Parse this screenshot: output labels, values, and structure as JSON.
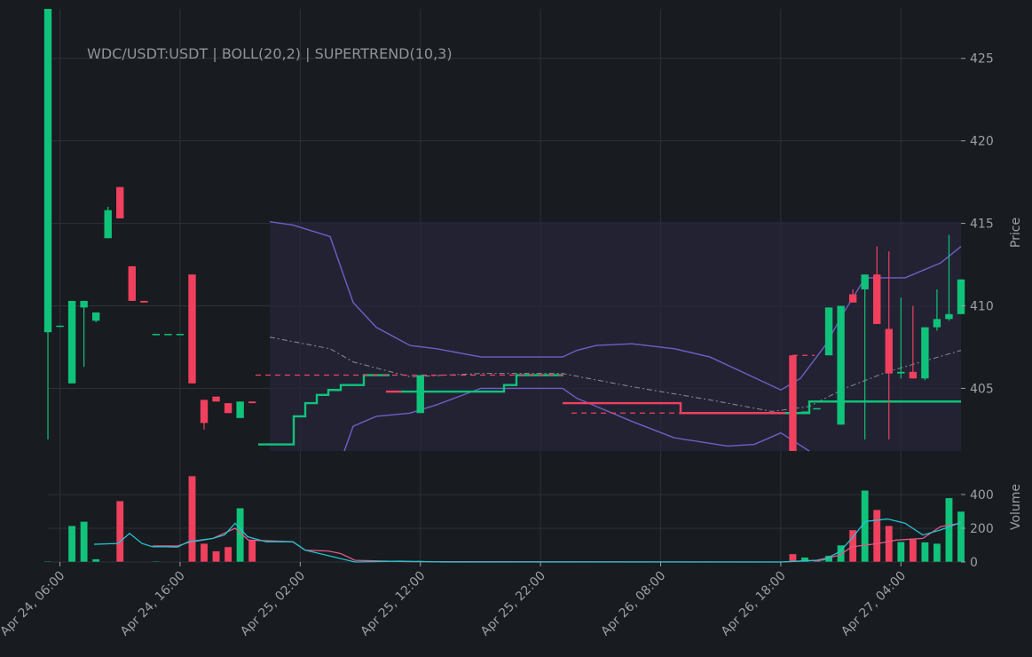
{
  "chart_data": {
    "type": "candlestick",
    "title": "WDC/USDT:USDT | BOLL(20,2) | SUPERTREND(10,3)",
    "price_label": "Price",
    "volume_label": "Volume",
    "price_ylim": [
      401.2,
      428.0
    ],
    "price_ticks": [
      405,
      410,
      415,
      420,
      425
    ],
    "volume_ylim": [
      0,
      500
    ],
    "volume_ticks": [
      0,
      200,
      400
    ],
    "x_start": "2024-04-24T05:00",
    "x_end": "2024-04-27T09:00",
    "x_ticks": [
      {
        "t": "2024-04-24T06:00",
        "label": "Apr 24, 06:00"
      },
      {
        "t": "2024-04-24T16:00",
        "label": "Apr 24, 16:00"
      },
      {
        "t": "2024-04-25T02:00",
        "label": "Apr 25, 02:00"
      },
      {
        "t": "2024-04-25T12:00",
        "label": "Apr 25, 12:00"
      },
      {
        "t": "2024-04-25T22:00",
        "label": "Apr 25, 22:00"
      },
      {
        "t": "2024-04-26T08:00",
        "label": "Apr 26, 08:00"
      },
      {
        "t": "2024-04-26T18:00",
        "label": "Apr 26, 18:00"
      },
      {
        "t": "2024-04-27T04:00",
        "label": "Apr 27, 04:00"
      }
    ],
    "candles": [
      {
        "t": "2024-04-24T05:00",
        "o": 408.4,
        "h": 428.0,
        "l": 401.9,
        "c": 428.0,
        "v": 5
      },
      {
        "t": "2024-04-24T06:00",
        "o": 408.8,
        "h": 408.8,
        "l": 408.8,
        "c": 408.8,
        "v": 0
      },
      {
        "t": "2024-04-24T07:00",
        "o": 405.3,
        "h": 410.3,
        "l": 405.3,
        "c": 410.3,
        "v": 215
      },
      {
        "t": "2024-04-24T08:00",
        "o": 409.9,
        "h": 410.3,
        "l": 406.3,
        "c": 410.3,
        "v": 240
      },
      {
        "t": "2024-04-24T09:00",
        "o": 409.1,
        "h": 409.6,
        "l": 409.0,
        "c": 409.6,
        "v": 18
      },
      {
        "t": "2024-04-24T10:00",
        "o": 414.1,
        "h": 416.0,
        "l": 414.1,
        "c": 415.8,
        "v": 0
      },
      {
        "t": "2024-04-24T11:00",
        "o": 417.2,
        "h": 417.2,
        "l": 415.3,
        "c": 415.3,
        "v": 362
      },
      {
        "t": "2024-04-24T12:00",
        "o": 412.4,
        "h": 412.4,
        "l": 410.3,
        "c": 410.3,
        "v": 0
      },
      {
        "t": "2024-04-24T13:00",
        "o": 410.3,
        "h": 410.3,
        "l": 410.2,
        "c": 410.2,
        "v": 0
      },
      {
        "t": "2024-04-24T14:00",
        "o": 408.3,
        "h": 408.3,
        "l": 408.3,
        "c": 408.3,
        "v": 5
      },
      {
        "t": "2024-04-24T15:00",
        "o": 408.3,
        "h": 408.3,
        "l": 408.3,
        "c": 408.3,
        "v": 0
      },
      {
        "t": "2024-04-24T16:00",
        "o": 408.3,
        "h": 408.3,
        "l": 408.3,
        "c": 408.3,
        "v": 0
      },
      {
        "t": "2024-04-24T17:00",
        "o": 411.9,
        "h": 411.9,
        "l": 405.3,
        "c": 405.3,
        "v": 510
      },
      {
        "t": "2024-04-24T18:00",
        "o": 404.3,
        "h": 404.3,
        "l": 402.5,
        "c": 402.9,
        "v": 110
      },
      {
        "t": "2024-04-24T19:00",
        "o": 404.5,
        "h": 404.5,
        "l": 404.2,
        "c": 404.2,
        "v": 65
      },
      {
        "t": "2024-04-24T20:00",
        "o": 404.1,
        "h": 404.1,
        "l": 403.5,
        "c": 403.5,
        "v": 90
      },
      {
        "t": "2024-04-24T21:00",
        "o": 403.2,
        "h": 404.2,
        "l": 403.2,
        "c": 404.2,
        "v": 320
      },
      {
        "t": "2024-04-24T22:00",
        "o": 404.2,
        "h": 404.2,
        "l": 404.1,
        "c": 404.1,
        "v": 130
      }
    ],
    "volume_extra": [
      {
        "t": "2024-04-25T12:00",
        "v": 8,
        "up": true
      },
      {
        "t": "2024-04-26T19:00",
        "v": 48,
        "up": false
      },
      {
        "t": "2024-04-26T20:00",
        "v": 28,
        "up": true
      },
      {
        "t": "2024-04-26T21:00",
        "v": 12,
        "up": false
      },
      {
        "t": "2024-04-26T22:00",
        "v": 38,
        "up": true
      },
      {
        "t": "2024-04-26T23:00",
        "v": 100,
        "up": true
      },
      {
        "t": "2024-04-27T00:00",
        "v": 190,
        "up": false
      },
      {
        "t": "2024-04-27T01:00",
        "v": 425,
        "up": true
      },
      {
        "t": "2024-04-27T02:00",
        "v": 310,
        "up": false
      },
      {
        "t": "2024-04-27T03:00",
        "v": 215,
        "up": false
      },
      {
        "t": "2024-04-27T04:00",
        "v": 120,
        "up": true
      },
      {
        "t": "2024-04-27T05:00",
        "v": 135,
        "up": false
      },
      {
        "t": "2024-04-27T06:00",
        "v": 118,
        "up": true
      },
      {
        "t": "2024-04-27T07:00",
        "v": 110,
        "up": true
      },
      {
        "t": "2024-04-27T08:00",
        "v": 380,
        "up": true
      },
      {
        "t": "2024-04-27T09:00",
        "v": 300,
        "up": true
      }
    ],
    "candles_late": [
      {
        "t": "2024-04-25T12:00",
        "o": 403.5,
        "h": 405.8,
        "l": 403.5,
        "c": 405.8
      },
      {
        "t": "2024-04-26T19:00",
        "o": 407.0,
        "h": 407.0,
        "l": 401.2,
        "c": 401.2
      },
      {
        "t": "2024-04-26T20:00",
        "o": 403.6,
        "h": 403.6,
        "l": 403.6,
        "c": 403.6
      },
      {
        "t": "2024-04-26T21:00",
        "o": 403.8,
        "h": 403.8,
        "l": 403.8,
        "c": 403.8
      },
      {
        "t": "2024-04-26T22:00",
        "o": 407.0,
        "h": 409.9,
        "l": 407.0,
        "c": 409.9
      },
      {
        "t": "2024-04-26T23:00",
        "o": 402.8,
        "h": 410.0,
        "l": 402.8,
        "c": 410.0
      },
      {
        "t": "2024-04-27T00:00",
        "o": 410.7,
        "h": 411.0,
        "l": 410.2,
        "c": 410.2
      },
      {
        "t": "2024-04-27T01:00",
        "o": 411.0,
        "h": 411.9,
        "l": 401.9,
        "c": 411.9
      },
      {
        "t": "2024-04-27T02:00",
        "o": 411.9,
        "h": 413.6,
        "l": 408.9,
        "c": 408.9
      },
      {
        "t": "2024-04-27T03:00",
        "o": 408.6,
        "h": 413.3,
        "l": 401.9,
        "c": 405.9
      },
      {
        "t": "2024-04-27T04:00",
        "o": 405.9,
        "h": 410.5,
        "l": 405.6,
        "c": 406.0
      },
      {
        "t": "2024-04-27T05:00",
        "o": 406.0,
        "h": 410.0,
        "l": 405.6,
        "c": 405.6
      },
      {
        "t": "2024-04-27T06:00",
        "o": 405.6,
        "h": 408.7,
        "l": 405.5,
        "c": 408.7
      },
      {
        "t": "2024-04-27T07:00",
        "o": 408.7,
        "h": 411.0,
        "l": 408.5,
        "c": 409.2
      },
      {
        "t": "2024-04-27T08:00",
        "o": 409.2,
        "h": 414.3,
        "l": 409.1,
        "c": 409.5
      },
      {
        "t": "2024-04-27T09:00",
        "o": 409.5,
        "h": 411.6,
        "l": 409.5,
        "c": 411.6
      }
    ],
    "colors": {
      "background": "#181b20",
      "grid": "#2e3238",
      "up": "#10c37a",
      "down": "#f0405e",
      "boll_band": "#6f5fc4",
      "boll_mid": "#8a8d93",
      "band_fill": "#262639",
      "vol_ma_fast": "#21c4d0",
      "vol_ma_slow": "#e05a86",
      "text": "#9aa0a6"
    }
  }
}
